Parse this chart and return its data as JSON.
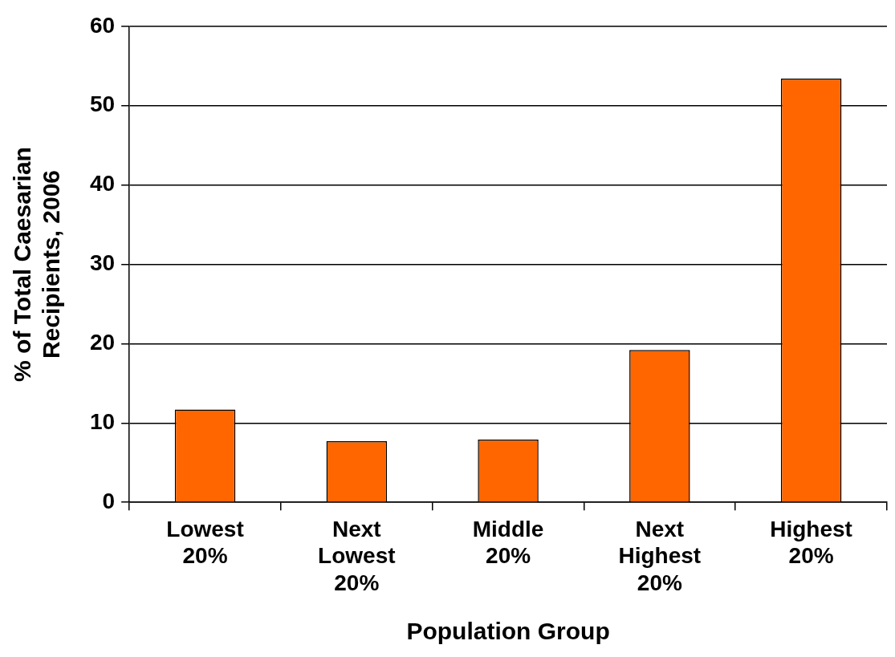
{
  "chart_data": {
    "type": "bar",
    "xlabel": "Population Group",
    "ylabel": "% of Total Caesarian Recipients, 2006",
    "categories": [
      "Lowest 20%",
      "Next Lowest 20%",
      "Middle 20%",
      "Next Highest 20%",
      "Highest 20%"
    ],
    "values": [
      11.7,
      7.7,
      7.9,
      19.2,
      53.4
    ],
    "color": "#ff6600",
    "ylim": [
      0,
      60
    ],
    "yticks": [
      0,
      10,
      20,
      30,
      40,
      50,
      60
    ],
    "grid": "y",
    "legend": false
  }
}
